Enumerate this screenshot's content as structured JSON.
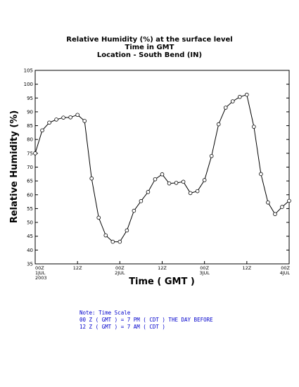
{
  "chart_data": {
    "type": "line",
    "title_lines": [
      "Relative Humidity (%) at the surface level",
      "Time in GMT",
      "Location - South Bend (IN)"
    ],
    "xlabel": "Time ( GMT )",
    "ylabel": "Relative Humidity (%)",
    "ylim": [
      35,
      105
    ],
    "y_ticks": [
      35,
      40,
      45,
      50,
      55,
      60,
      65,
      70,
      75,
      80,
      85,
      90,
      95,
      100,
      105
    ],
    "xlim_hours": [
      0,
      72
    ],
    "x_ticks": [
      {
        "hour": 0,
        "lines": [
          "00Z",
          "1JUL",
          "2003"
        ]
      },
      {
        "hour": 12,
        "lines": [
          "12Z"
        ]
      },
      {
        "hour": 24,
        "lines": [
          "00Z",
          "2JUL"
        ]
      },
      {
        "hour": 36,
        "lines": [
          "12Z"
        ]
      },
      {
        "hour": 48,
        "lines": [
          "00Z",
          "3JUL"
        ]
      },
      {
        "hour": 60,
        "lines": [
          "12Z"
        ]
      },
      {
        "hour": 72,
        "lines": [
          "00Z",
          "4JUL"
        ]
      }
    ],
    "grid": false,
    "series": [
      {
        "color": "#000000",
        "marker": "open-circle",
        "x_hours": [
          0,
          2,
          4,
          6,
          8,
          10,
          12,
          14,
          16,
          18,
          20,
          22,
          24,
          26,
          28,
          30,
          32,
          34,
          36,
          38,
          40,
          42,
          44,
          46,
          48,
          50,
          52,
          54,
          56,
          58,
          60,
          62,
          64,
          66,
          68,
          70,
          72
        ],
        "values": [
          75.0,
          83.3,
          86.1,
          87.2,
          87.9,
          88.0,
          88.9,
          86.7,
          65.9,
          51.7,
          45.3,
          43.0,
          43.0,
          47.1,
          54.2,
          57.7,
          61.0,
          65.6,
          67.4,
          64.1,
          64.3,
          64.7,
          60.6,
          61.3,
          65.3,
          74.0,
          85.5,
          91.5,
          93.8,
          95.4,
          96.2,
          84.6,
          67.5,
          57.2,
          53.0,
          55.6,
          57.8
        ]
      }
    ]
  },
  "note": {
    "lines": [
      "Note: Time Scale",
      "00 Z ( GMT ) = 7 PM ( CDT ) THE DAY BEFORE",
      "12 Z ( GMT ) = 7 AM ( CDT )"
    ]
  }
}
